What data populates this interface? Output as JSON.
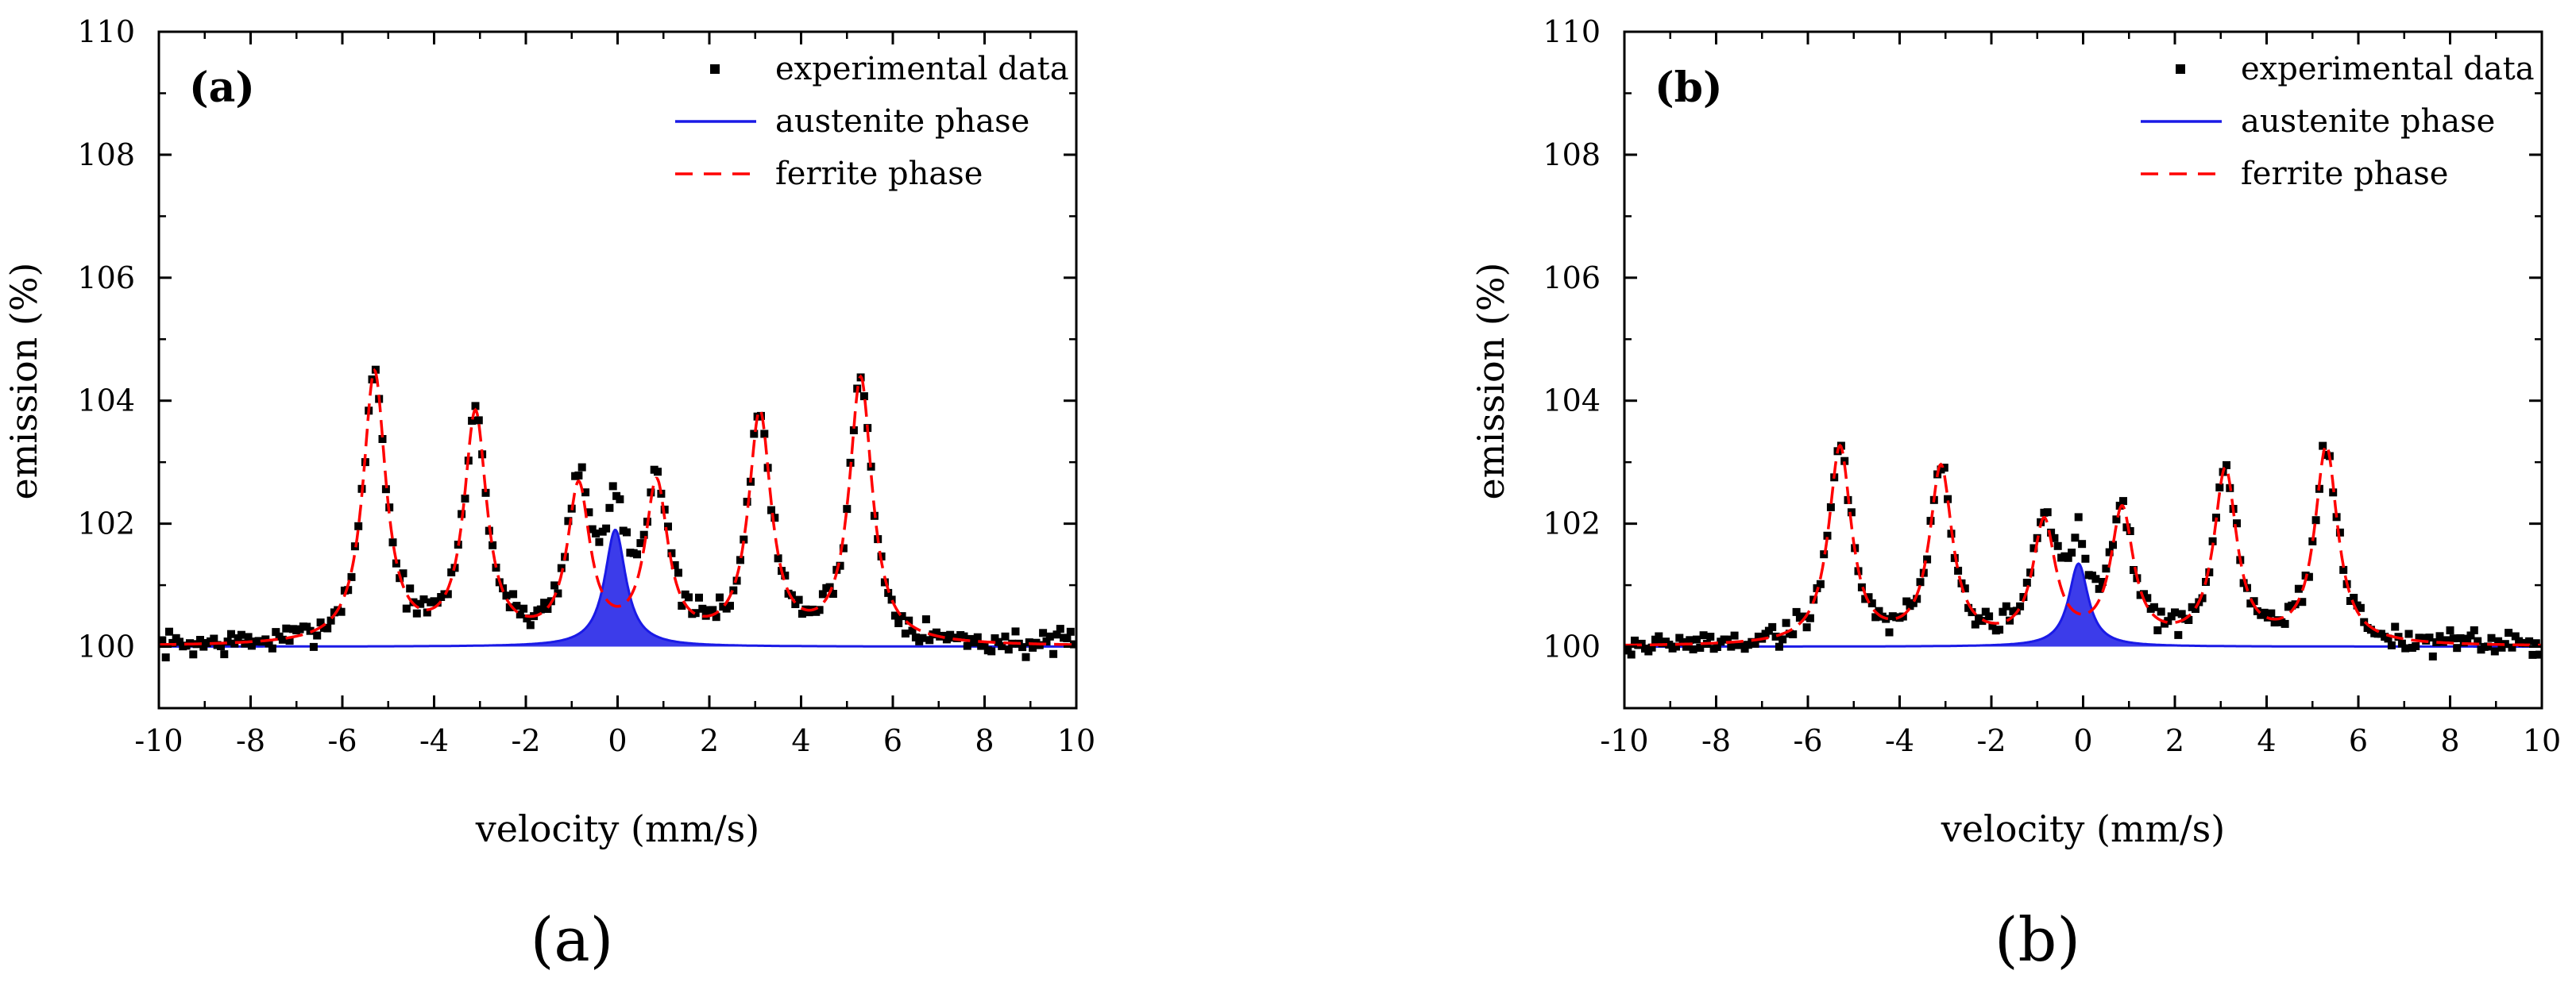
{
  "chart_data": [
    {
      "type": "scatter",
      "panel_label": "(a)",
      "caption": "(a)",
      "xlabel": "velocity (mm/s)",
      "ylabel": "emission (%)",
      "xlim": [
        -10,
        10
      ],
      "ylim": [
        99,
        110
      ],
      "xticks": [
        -10,
        -8,
        -6,
        -4,
        -2,
        0,
        2,
        4,
        6,
        8,
        10
      ],
      "xtick_labels": [
        "-10",
        "-8",
        "-6",
        "-4",
        "-2",
        "0",
        "2",
        "4",
        "6",
        "8",
        "10"
      ],
      "yticks": [
        100,
        102,
        104,
        106,
        108,
        110
      ],
      "ytick_labels": [
        "100",
        "102",
        "104",
        "106",
        "108",
        "110"
      ],
      "grid": false,
      "legend_position": "top-right",
      "legend": [
        {
          "label": "experimental data",
          "style": "square-marker",
          "color": "#000000"
        },
        {
          "label": "austenite phase",
          "style": "solid",
          "color": "#1a1ae6"
        },
        {
          "label": "ferrite phase",
          "style": "dashed",
          "color": "#ff0000"
        }
      ],
      "series": {
        "austenite": {
          "name": "austenite phase",
          "center": -0.05,
          "amplitude": 1.9,
          "hwhm": 0.28,
          "baseline": 100.0
        },
        "ferrite": {
          "name": "ferrite phase",
          "baseline": 100.0,
          "hwhm": 0.3,
          "lines": [
            {
              "center": -5.3,
              "amplitude": 4.4
            },
            {
              "center": -3.1,
              "amplitude": 3.7
            },
            {
              "center": -0.85,
              "amplitude": 2.5
            },
            {
              "center": 0.85,
              "amplitude": 2.55
            },
            {
              "center": 3.1,
              "amplitude": 3.7
            },
            {
              "center": 5.3,
              "amplitude": 4.3
            }
          ]
        },
        "experimental": {
          "name": "experimental data",
          "x_start": -10,
          "x_end": 10,
          "step": 0.075,
          "noise": 0.13,
          "seed": 7
        }
      }
    },
    {
      "type": "scatter",
      "panel_label": "(b)",
      "caption": "(b)",
      "xlabel": "velocity (mm/s)",
      "ylabel": "emission (%)",
      "xlim": [
        -10,
        10
      ],
      "ylim": [
        99,
        110
      ],
      "xticks": [
        -10,
        -8,
        -6,
        -4,
        -2,
        0,
        2,
        4,
        6,
        8,
        10
      ],
      "xtick_labels": [
        "-10",
        "-8",
        "-6",
        "-4",
        "-2",
        "0",
        "2",
        "4",
        "6",
        "8",
        "10"
      ],
      "yticks": [
        100,
        102,
        104,
        106,
        108,
        110
      ],
      "ytick_labels": [
        "100",
        "102",
        "104",
        "106",
        "108",
        "110"
      ],
      "grid": false,
      "legend_position": "top-right",
      "legend": [
        {
          "label": "experimental data",
          "style": "square-marker",
          "color": "#000000"
        },
        {
          "label": "austenite phase",
          "style": "solid",
          "color": "#1a1ae6"
        },
        {
          "label": "ferrite phase",
          "style": "dashed",
          "color": "#ff0000"
        }
      ],
      "series": {
        "austenite": {
          "name": "austenite phase",
          "center": -0.1,
          "amplitude": 1.35,
          "hwhm": 0.26,
          "baseline": 100.0
        },
        "ferrite": {
          "name": "ferrite phase",
          "baseline": 100.0,
          "hwhm": 0.3,
          "lines": [
            {
              "center": -5.3,
              "amplitude": 3.2
            },
            {
              "center": -3.1,
              "amplitude": 2.85
            },
            {
              "center": -0.85,
              "amplitude": 1.95
            },
            {
              "center": 0.85,
              "amplitude": 2.15
            },
            {
              "center": 3.1,
              "amplitude": 2.8
            },
            {
              "center": 5.3,
              "amplitude": 3.2
            }
          ]
        },
        "experimental": {
          "name": "experimental data",
          "x_start": -10,
          "x_end": 10,
          "step": 0.075,
          "noise": 0.13,
          "seed": 19
        }
      }
    }
  ]
}
